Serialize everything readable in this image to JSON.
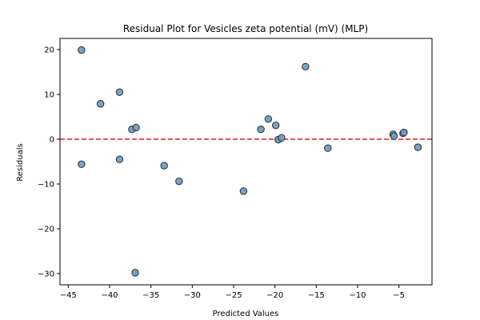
{
  "chart_data": {
    "type": "scatter",
    "title": "Residual Plot for Vesicles zeta potential (mV) (MLP)",
    "xlabel": "Predicted Values",
    "ylabel": "Residuals",
    "xlim": [
      -46,
      -1.0
    ],
    "ylim": [
      -32.5,
      22.5
    ],
    "xticks": [
      -45,
      -40,
      -35,
      -30,
      -25,
      -20,
      -15,
      -10,
      -5
    ],
    "yticks": [
      -30,
      -20,
      -10,
      0,
      10,
      20
    ],
    "grid": false,
    "reference_line": {
      "y": 0,
      "color": "#e41a1c",
      "style": "dashed"
    },
    "marker_color": "#6a9cc4",
    "marker_edge_color": "#2b2b2b",
    "points": [
      {
        "x": -43.4,
        "y": 19.9
      },
      {
        "x": -43.4,
        "y": -5.6
      },
      {
        "x": -41.1,
        "y": 7.9
      },
      {
        "x": -38.8,
        "y": 10.5
      },
      {
        "x": -38.8,
        "y": -4.5
      },
      {
        "x": -37.3,
        "y": 2.2
      },
      {
        "x": -36.8,
        "y": 2.6
      },
      {
        "x": -36.9,
        "y": -29.8
      },
      {
        "x": -33.4,
        "y": -5.9
      },
      {
        "x": -31.6,
        "y": -9.4
      },
      {
        "x": -23.8,
        "y": -11.6
      },
      {
        "x": -21.7,
        "y": 2.2
      },
      {
        "x": -20.8,
        "y": 4.5
      },
      {
        "x": -19.9,
        "y": 3.1
      },
      {
        "x": -19.6,
        "y": -0.1
      },
      {
        "x": -19.2,
        "y": 0.3
      },
      {
        "x": -16.3,
        "y": 16.2
      },
      {
        "x": -13.6,
        "y": -2.0
      },
      {
        "x": -5.7,
        "y": 1.1
      },
      {
        "x": -5.6,
        "y": 0.7
      },
      {
        "x": -4.5,
        "y": 1.3
      },
      {
        "x": -4.4,
        "y": 1.5
      },
      {
        "x": -2.7,
        "y": -1.8
      }
    ]
  }
}
